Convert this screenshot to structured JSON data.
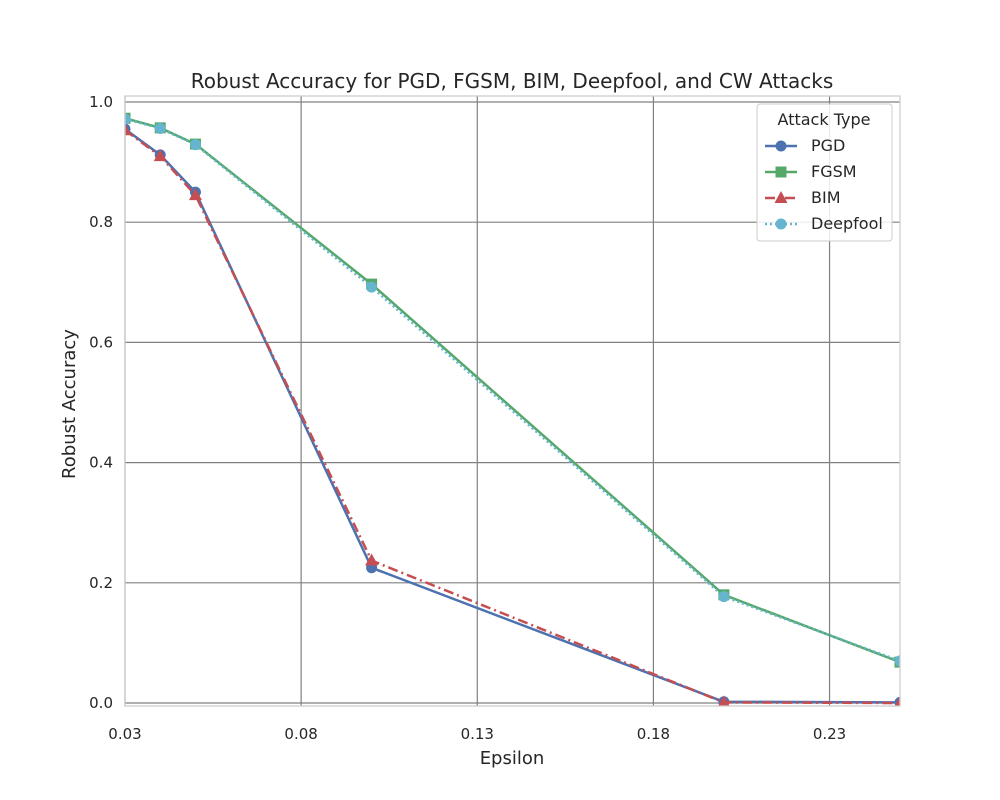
{
  "chart_data": {
    "type": "line",
    "title": "Robust Accuracy for PGD, FGSM, BIM, Deepfool, and CW Attacks",
    "xlabel": "Epsilon",
    "ylabel": "Robust Accuracy",
    "xlim": [
      0.03,
      0.25
    ],
    "ylim": [
      -0.005,
      1.01
    ],
    "xticks": [
      0.03,
      0.08,
      0.13,
      0.18,
      0.23
    ],
    "xtick_labels": [
      "0.03",
      "0.08",
      "0.13",
      "0.18",
      "0.23"
    ],
    "yticks": [
      0.0,
      0.2,
      0.4,
      0.6,
      0.8,
      1.0
    ],
    "ytick_labels": [
      "0.0",
      "0.2",
      "0.4",
      "0.6",
      "0.8",
      "1.0"
    ],
    "grid": true,
    "legend": {
      "title": "Attack Type",
      "placement": "top-right"
    },
    "x": [
      0.03,
      0.04,
      0.05,
      0.1,
      0.2,
      0.25
    ],
    "series": [
      {
        "name": "PGD",
        "values": [
          0.955,
          0.912,
          0.85,
          0.225,
          0.002,
          0.001
        ],
        "color": "#4c72b0",
        "marker": "circle",
        "linestyle": "solid"
      },
      {
        "name": "FGSM",
        "values": [
          0.973,
          0.957,
          0.93,
          0.697,
          0.18,
          0.068
        ],
        "color": "#55a868",
        "marker": "square",
        "linestyle": "solid"
      },
      {
        "name": "BIM",
        "values": [
          0.953,
          0.91,
          0.845,
          0.237,
          0.001,
          0.0
        ],
        "color": "#c44e52",
        "marker": "triangle",
        "linestyle": "dashdot"
      },
      {
        "name": "Deepfool",
        "values": [
          0.972,
          0.956,
          0.929,
          0.692,
          0.177,
          0.07
        ],
        "color": "#64b5cd",
        "marker": "circle",
        "linestyle": "dotted"
      }
    ]
  }
}
